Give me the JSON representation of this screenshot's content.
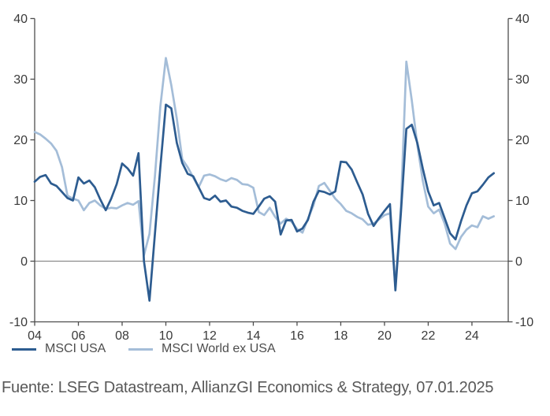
{
  "chart": {
    "legend": {
      "items": [
        {
          "label": "MSCI USA",
          "color": "#2d5c90"
        },
        {
          "label": "MSCI World ex USA",
          "color": "#a4bdd8"
        }
      ]
    },
    "source_note": "Fuente: LSEG Datastream, AllianzGI Economics & Strategy, 07.01.2025"
  },
  "chart_data": {
    "type": "line",
    "title": "",
    "xlabel": "",
    "ylabel": "",
    "x": [
      2004,
      2004.25,
      2004.5,
      2004.75,
      2005,
      2005.25,
      2005.5,
      2005.75,
      2006,
      2006.25,
      2006.5,
      2006.75,
      2007,
      2007.25,
      2007.5,
      2007.75,
      2008,
      2008.25,
      2008.5,
      2008.75,
      2009,
      2009.25,
      2009.5,
      2009.75,
      2010,
      2010.25,
      2010.5,
      2010.75,
      2011,
      2011.25,
      2011.5,
      2011.75,
      2012,
      2012.25,
      2012.5,
      2012.75,
      2013,
      2013.25,
      2013.5,
      2013.75,
      2014,
      2014.25,
      2014.5,
      2014.75,
      2015,
      2015.25,
      2015.5,
      2015.75,
      2016,
      2016.25,
      2016.5,
      2016.75,
      2017,
      2017.25,
      2017.5,
      2017.75,
      2018,
      2018.25,
      2018.5,
      2018.75,
      2019,
      2019.25,
      2019.5,
      2019.75,
      2020,
      2020.25,
      2020.5,
      2020.75,
      2021,
      2021.25,
      2021.5,
      2021.75,
      2022,
      2022.25,
      2022.5,
      2022.75,
      2023,
      2023.25,
      2023.5,
      2023.75,
      2024,
      2024.25,
      2024.5,
      2024.75,
      2025
    ],
    "series": [
      {
        "name": "MSCI USA",
        "color": "#2d5c90",
        "values": [
          13.1,
          13.9,
          14.2,
          12.8,
          12.4,
          11.4,
          10.4,
          10,
          13.8,
          12.8,
          13.3,
          12.2,
          10.2,
          8.4,
          10.3,
          12.7,
          16.1,
          15.3,
          14.1,
          17.8,
          0,
          -6.5,
          4.5,
          15.5,
          25.8,
          25.2,
          19.5,
          16.2,
          14.4,
          14,
          12.2,
          10.4,
          10.1,
          10.8,
          9.8,
          10,
          9,
          8.8,
          8.3,
          8,
          7.8,
          9,
          10.3,
          10.7,
          9.8,
          4.4,
          6.7,
          6.8,
          4.9,
          5.4,
          6.8,
          9.8,
          11.6,
          11.4,
          11,
          11.5,
          16.4,
          16.3,
          15.1,
          13,
          11,
          7.8,
          5.8,
          7.1,
          8.3,
          9.4,
          -4.8,
          8,
          21.8,
          22.5,
          19.5,
          15.3,
          11.5,
          9.2,
          9.6,
          7.1,
          4.6,
          3.6,
          6.6,
          9.2,
          11.2,
          11.5,
          12.6,
          13.8,
          14.5
        ]
      },
      {
        "name": "MSCI World ex USA",
        "color": "#a4bdd8",
        "values": [
          21.3,
          20.9,
          20.2,
          19.4,
          18.2,
          15.5,
          10.8,
          10.3,
          10,
          8.4,
          9.6,
          10,
          9.2,
          8.6,
          8.8,
          8.7,
          9.2,
          9.6,
          9.3,
          9.9,
          1,
          4.5,
          14,
          25.5,
          33.5,
          29,
          23.5,
          16.8,
          15.5,
          13.8,
          12.2,
          14.1,
          14.3,
          14,
          13.5,
          13.2,
          13.7,
          13.4,
          12.7,
          12.6,
          12.1,
          8.1,
          7.6,
          8.8,
          7.3,
          6.2,
          7,
          6.5,
          5.3,
          4.7,
          7,
          9.2,
          12.4,
          12.9,
          11.6,
          10.3,
          9.4,
          8.3,
          7.9,
          7.3,
          6.9,
          6,
          6.2,
          6.9,
          7.6,
          7.9,
          -4.2,
          9,
          32.9,
          26.5,
          19.2,
          13.3,
          9,
          7.9,
          8.5,
          6.2,
          2.9,
          2,
          4,
          5.2,
          5.9,
          5.6,
          7.4,
          7,
          7.4
        ]
      }
    ],
    "ylim": [
      -10,
      40
    ],
    "xlim": [
      2004,
      2025.66
    ],
    "y_ticks": [
      -10,
      0,
      10,
      20,
      30,
      40
    ],
    "x_ticks": [
      2004,
      2006,
      2008,
      2010,
      2012,
      2014,
      2016,
      2018,
      2020,
      2022,
      2024
    ],
    "x_tick_labels": [
      "04",
      "06",
      "08",
      "10",
      "12",
      "14",
      "16",
      "18",
      "20",
      "22",
      "24"
    ],
    "grid": false,
    "zero_line": true,
    "y_axis_sides": [
      "left",
      "right"
    ],
    "legend_position": "bottom-left",
    "colors": {
      "axis": "#4d4d4d",
      "zero_line": "#8c8c8c",
      "tick_label": "#3a3a3a"
    }
  }
}
